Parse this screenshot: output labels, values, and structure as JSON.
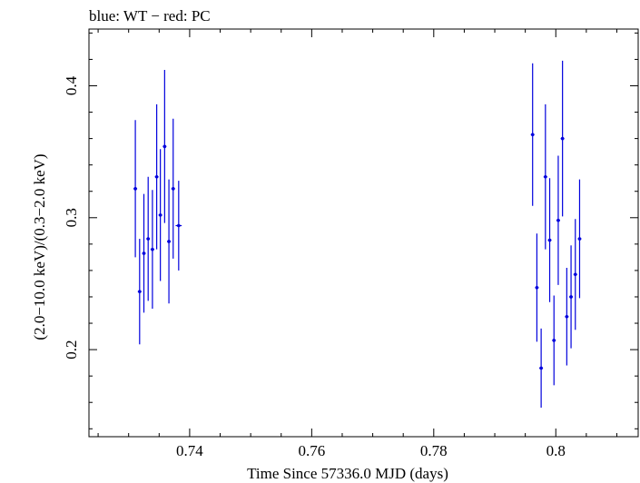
{
  "chart_data": {
    "type": "scatter",
    "title": "blue: WT − red: PC",
    "xlabel": "Time Since 57336.0 MJD (days)",
    "ylabel": "(2.0−10.0 keV)/(0.3−2.0 keV)",
    "xlim": [
      0.7235,
      0.8135
    ],
    "ylim": [
      0.134,
      0.443
    ],
    "x_ticks": [
      {
        "value": 0.74,
        "label": "0.74"
      },
      {
        "value": 0.76,
        "label": "0.76"
      },
      {
        "value": 0.78,
        "label": "0.78"
      },
      {
        "value": 0.8,
        "label": "0.8"
      }
    ],
    "y_ticks": [
      {
        "value": 0.2,
        "label": "0.2"
      },
      {
        "value": 0.3,
        "label": "0.3"
      },
      {
        "value": 0.4,
        "label": "0.4"
      }
    ],
    "grid": false,
    "series": [
      {
        "color": "#0000dd",
        "points": [
          {
            "x": 0.7311,
            "y": 0.322,
            "yerr": 0.052,
            "xerr": 0.0002
          },
          {
            "x": 0.7318,
            "y": 0.244,
            "yerr": 0.04,
            "xerr": 0.0002
          },
          {
            "x": 0.7325,
            "y": 0.273,
            "yerr": 0.045,
            "xerr": 0.0002
          },
          {
            "x": 0.7332,
            "y": 0.284,
            "yerr": 0.047,
            "xerr": 0.0002
          },
          {
            "x": 0.7339,
            "y": 0.276,
            "yerr": 0.045,
            "xerr": 0.0002
          },
          {
            "x": 0.7346,
            "y": 0.331,
            "yerr": 0.055,
            "xerr": 0.0002
          },
          {
            "x": 0.7352,
            "y": 0.302,
            "yerr": 0.05,
            "xerr": 0.0002
          },
          {
            "x": 0.7359,
            "y": 0.354,
            "yerr": 0.058,
            "xerr": 0.0002
          },
          {
            "x": 0.7366,
            "y": 0.282,
            "yerr": 0.047,
            "xerr": 0.0002
          },
          {
            "x": 0.7373,
            "y": 0.322,
            "yerr": 0.053,
            "xerr": 0.0002
          },
          {
            "x": 0.7382,
            "y": 0.294,
            "yerr": 0.034,
            "xerr": 0.0005
          },
          {
            "x": 0.7962,
            "y": 0.363,
            "yerr": 0.054,
            "xerr": 0.0002
          },
          {
            "x": 0.7969,
            "y": 0.247,
            "yerr": 0.041,
            "xerr": 0.0002
          },
          {
            "x": 0.7976,
            "y": 0.186,
            "yerr": 0.03,
            "xerr": 0.0002
          },
          {
            "x": 0.7983,
            "y": 0.331,
            "yerr": 0.055,
            "xerr": 0.0002
          },
          {
            "x": 0.799,
            "y": 0.283,
            "yerr": 0.047,
            "xerr": 0.0002
          },
          {
            "x": 0.7997,
            "y": 0.207,
            "yerr": 0.034,
            "xerr": 0.0002
          },
          {
            "x": 0.8004,
            "y": 0.298,
            "yerr": 0.049,
            "xerr": 0.0002
          },
          {
            "x": 0.8011,
            "y": 0.36,
            "yerr": 0.059,
            "xerr": 0.0002
          },
          {
            "x": 0.8018,
            "y": 0.225,
            "yerr": 0.037,
            "xerr": 0.0002
          },
          {
            "x": 0.8025,
            "y": 0.24,
            "yerr": 0.039,
            "xerr": 0.0002
          },
          {
            "x": 0.8032,
            "y": 0.257,
            "yerr": 0.042,
            "xerr": 0.0002
          },
          {
            "x": 0.8039,
            "y": 0.284,
            "yerr": 0.045,
            "xerr": 0.0002
          }
        ]
      }
    ]
  }
}
